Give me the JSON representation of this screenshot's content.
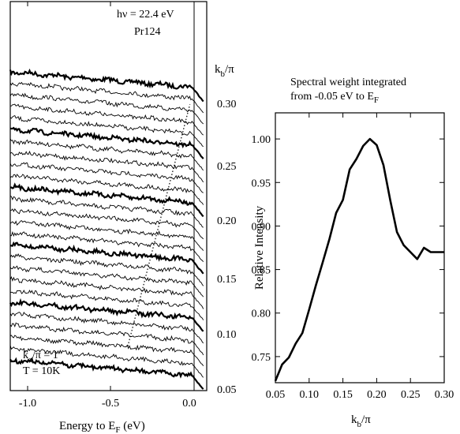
{
  "left_panel": {
    "annotation_energy": "hν = 22.4 eV",
    "annotation_sample": "Pr124",
    "kb_label_main": "k",
    "kb_label_sub": "b",
    "kb_label_tail": "/π",
    "ka_label_main": "k",
    "ka_label_sub": "a",
    "ka_label_tail": "/π  = 1",
    "temperature": "T = 10K",
    "xlabel_main": "Energy to E",
    "xlabel_sub": "F",
    "xlabel_tail": " (eV)",
    "x_ticks": [
      "-1.0",
      "-0.5",
      "0.0"
    ],
    "kb_ticks": [
      "0.30",
      "0.25",
      "0.20",
      "0.15",
      "0.10",
      "0.05"
    ]
  },
  "right_panel": {
    "title_line1": "Spectral weight integrated",
    "title_line2_main": "from -0.05 eV to E",
    "title_line2_sub": "F",
    "ylabel": "Relative Intensity",
    "xlabel_main": "k",
    "xlabel_sub": "b",
    "xlabel_tail": "/π",
    "x_ticks": [
      "0.05",
      "0.10",
      "0.15",
      "0.20",
      "0.25",
      "0.30"
    ],
    "y_ticks": [
      "0.75",
      "0.80",
      "0.85",
      "0.90",
      "0.95",
      "1.00"
    ]
  },
  "chart_data": [
    {
      "type": "line",
      "xlabel": "Energy to EF (eV)",
      "xlim": [
        -1.1,
        0.07
      ],
      "secondary_axis_label": "kb/π",
      "secondary_ticks": [
        0.3,
        0.25,
        0.2,
        0.15,
        0.1,
        0.05
      ],
      "series_count": 26,
      "kb_values": [
        0.3,
        0.29,
        0.28,
        0.27,
        0.26,
        0.25,
        0.24,
        0.23,
        0.22,
        0.21,
        0.2,
        0.19,
        0.18,
        0.17,
        0.16,
        0.15,
        0.14,
        0.13,
        0.12,
        0.11,
        0.1,
        0.09,
        0.08,
        0.07,
        0.06,
        0.05
      ],
      "thick_every": 5,
      "dispersion_line": {
        "x": [
          -0.4,
          -0.03
        ],
        "kb": [
          0.07,
          0.28
        ]
      }
    },
    {
      "type": "line",
      "title": "Spectral weight integrated from -0.05 eV to EF",
      "xlabel": "kb/π",
      "ylabel": "Relative Intensity",
      "xlim": [
        0.05,
        0.3
      ],
      "ylim": [
        0.72,
        1.03
      ],
      "x": [
        0.05,
        0.06,
        0.07,
        0.08,
        0.09,
        0.1,
        0.11,
        0.12,
        0.13,
        0.14,
        0.15,
        0.16,
        0.17,
        0.18,
        0.19,
        0.2,
        0.21,
        0.22,
        0.23,
        0.24,
        0.25,
        0.26,
        0.27,
        0.28,
        0.29,
        0.3
      ],
      "y": [
        0.722,
        0.741,
        0.749,
        0.765,
        0.777,
        0.804,
        0.832,
        0.858,
        0.885,
        0.915,
        0.93,
        0.965,
        0.977,
        0.992,
        1.0,
        0.993,
        0.97,
        0.93,
        0.893,
        0.878,
        0.87,
        0.862,
        0.875,
        0.87,
        0.87,
        0.87
      ]
    }
  ]
}
